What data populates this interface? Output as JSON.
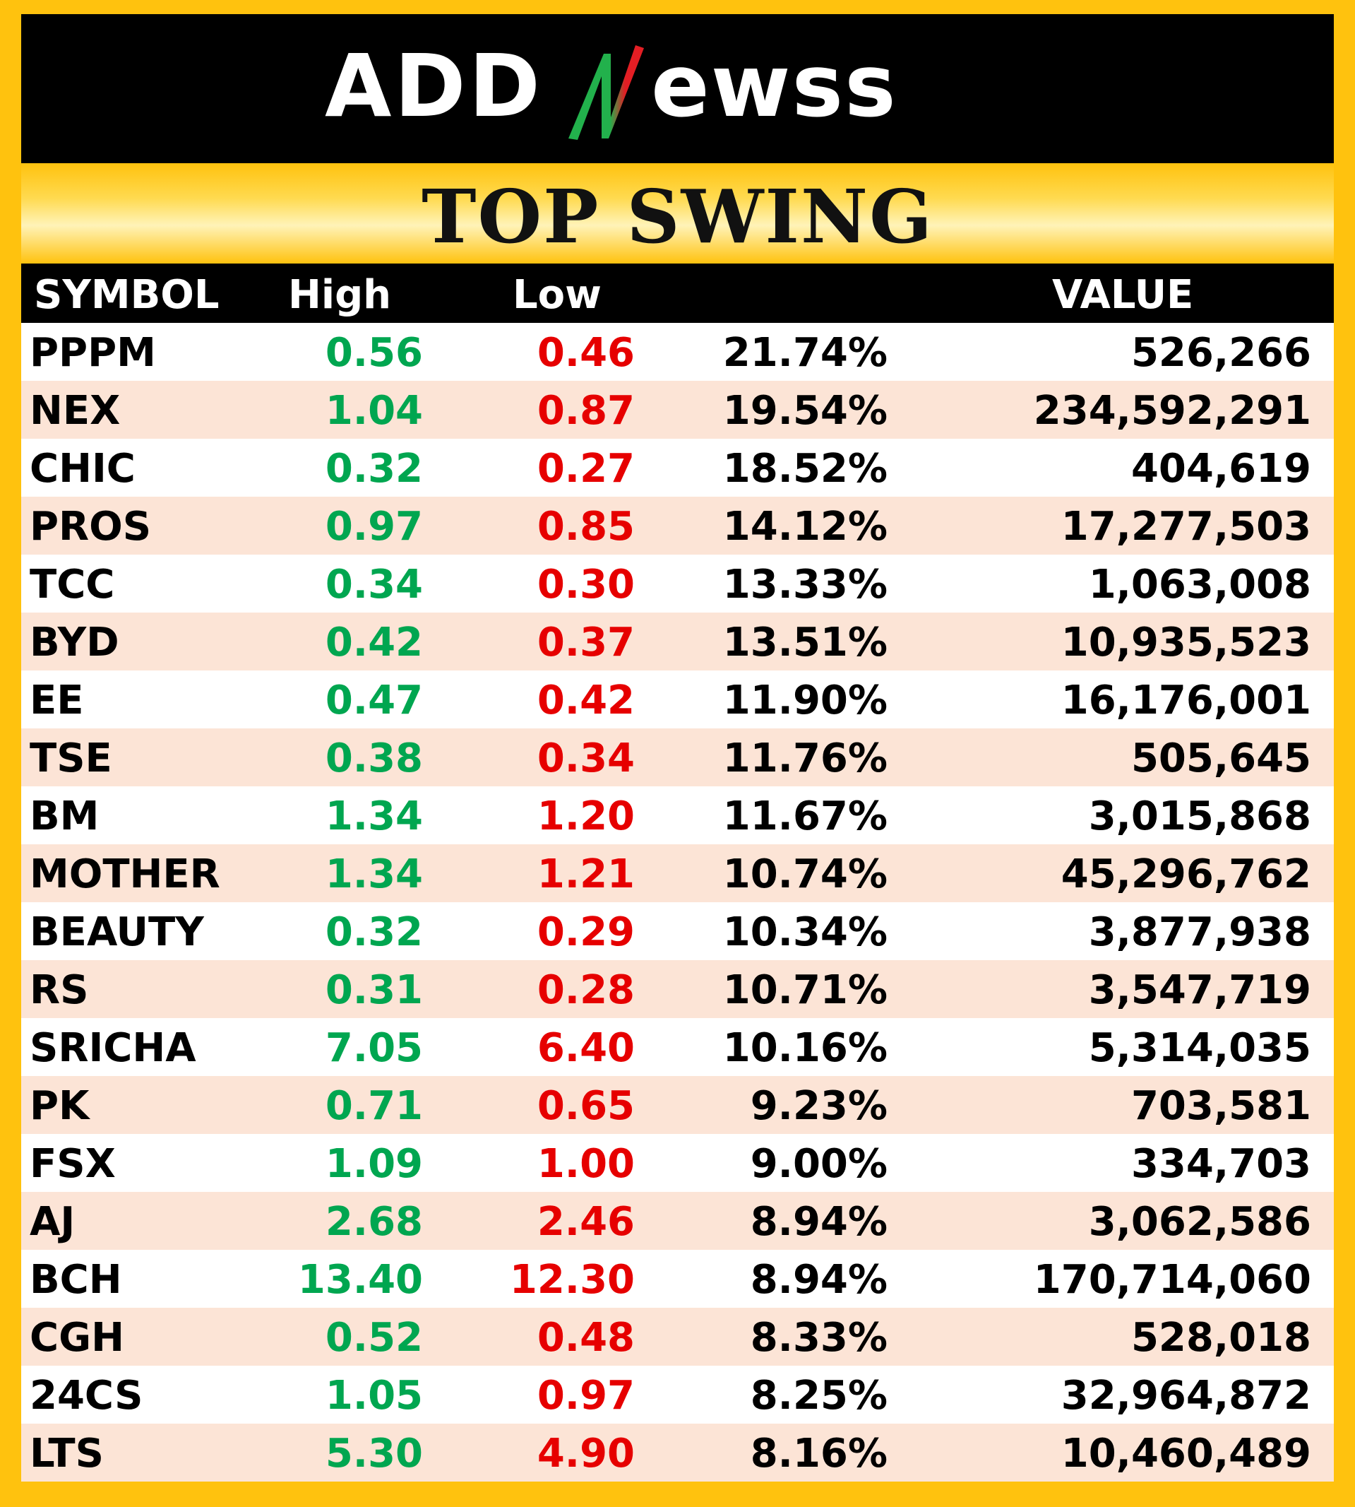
{
  "brand": {
    "name": "ADDNewss",
    "colors": {
      "green": "#22B14C",
      "red": "#E31E24",
      "white": "#FFFFFF"
    }
  },
  "title": "TOP SWING",
  "columns": {
    "symbol": "SYMBOL",
    "high": "High",
    "low": "Low",
    "pct": "",
    "value": "VALUE"
  },
  "colors": {
    "frame": "#FFC20E",
    "high": "#00A650",
    "low": "#E60000",
    "row_alt": "#FCE4D6"
  },
  "rows": [
    {
      "symbol": "PPPM",
      "high": "0.56",
      "low": "0.46",
      "pct": "21.74%",
      "value": "526,266"
    },
    {
      "symbol": "NEX",
      "high": "1.04",
      "low": "0.87",
      "pct": "19.54%",
      "value": "234,592,291"
    },
    {
      "symbol": "CHIC",
      "high": "0.32",
      "low": "0.27",
      "pct": "18.52%",
      "value": "404,619"
    },
    {
      "symbol": "PROS",
      "high": "0.97",
      "low": "0.85",
      "pct": "14.12%",
      "value": "17,277,503"
    },
    {
      "symbol": "TCC",
      "high": "0.34",
      "low": "0.30",
      "pct": "13.33%",
      "value": "1,063,008"
    },
    {
      "symbol": "BYD",
      "high": "0.42",
      "low": "0.37",
      "pct": "13.51%",
      "value": "10,935,523"
    },
    {
      "symbol": "EE",
      "high": "0.47",
      "low": "0.42",
      "pct": "11.90%",
      "value": "16,176,001"
    },
    {
      "symbol": "TSE",
      "high": "0.38",
      "low": "0.34",
      "pct": "11.76%",
      "value": "505,645"
    },
    {
      "symbol": "BM",
      "high": "1.34",
      "low": "1.20",
      "pct": "11.67%",
      "value": "3,015,868"
    },
    {
      "symbol": "MOTHER",
      "high": "1.34",
      "low": "1.21",
      "pct": "10.74%",
      "value": "45,296,762"
    },
    {
      "symbol": "BEAUTY",
      "high": "0.32",
      "low": "0.29",
      "pct": "10.34%",
      "value": "3,877,938"
    },
    {
      "symbol": "RS",
      "high": "0.31",
      "low": "0.28",
      "pct": "10.71%",
      "value": "3,547,719"
    },
    {
      "symbol": "SRICHA",
      "high": "7.05",
      "low": "6.40",
      "pct": "10.16%",
      "value": "5,314,035"
    },
    {
      "symbol": "PK",
      "high": "0.71",
      "low": "0.65",
      "pct": "9.23%",
      "value": "703,581"
    },
    {
      "symbol": "FSX",
      "high": "1.09",
      "low": "1.00",
      "pct": "9.00%",
      "value": "334,703"
    },
    {
      "symbol": "AJ",
      "high": "2.68",
      "low": "2.46",
      "pct": "8.94%",
      "value": "3,062,586"
    },
    {
      "symbol": "BCH",
      "high": "13.40",
      "low": "12.30",
      "pct": "8.94%",
      "value": "170,714,060"
    },
    {
      "symbol": "CGH",
      "high": "0.52",
      "low": "0.48",
      "pct": "8.33%",
      "value": "528,018"
    },
    {
      "symbol": "24CS",
      "high": "1.05",
      "low": "0.97",
      "pct": "8.25%",
      "value": "32,964,872"
    },
    {
      "symbol": "LTS",
      "high": "5.30",
      "low": "4.90",
      "pct": "8.16%",
      "value": "10,460,489"
    }
  ]
}
